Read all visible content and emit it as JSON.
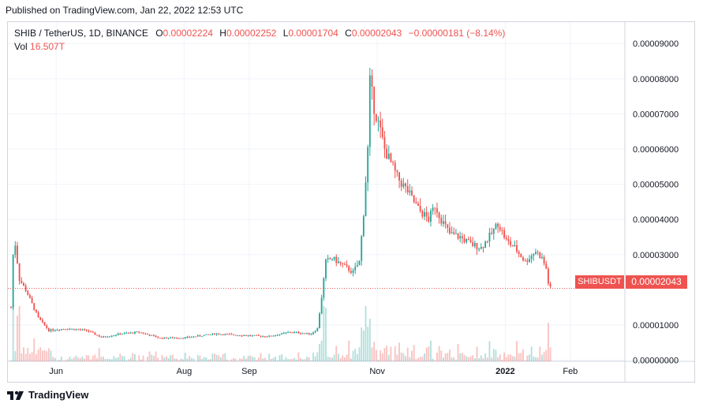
{
  "header": {
    "published": "Published on TradingView.com, Jan 22, 2022 12:53 UTC"
  },
  "legend": {
    "symbol": "SHIB / TetherUS, 1D, BINANCE",
    "o_label": "O",
    "o_value": "0.00002224",
    "h_label": "H",
    "h_value": "0.00002252",
    "l_label": "L",
    "l_value": "0.00001704",
    "c_label": "C",
    "c_value": "0.00002043",
    "change": "−0.00000181 (−8.14%)",
    "vol_label": "Vol",
    "vol_value": "16.507T"
  },
  "price_tag": {
    "symbol": "SHIBUSDT",
    "value": "0.00002043"
  },
  "footer": {
    "brand": "TradingView"
  },
  "colors": {
    "up": "#26a69a",
    "down": "#ef5350",
    "grid": "#f0f3fa",
    "axis_text": "#131722"
  },
  "chart_data": {
    "type": "candlestick",
    "symbol": "SHIBUSDT",
    "y_ticks": [
      {
        "value": 9e-05,
        "label": "0.00009000"
      },
      {
        "value": 8e-05,
        "label": "0.00008000"
      },
      {
        "value": 7e-05,
        "label": "0.00007000"
      },
      {
        "value": 6e-05,
        "label": "0.00006000"
      },
      {
        "value": 5e-05,
        "label": "0.00005000"
      },
      {
        "value": 4e-05,
        "label": "0.00004000"
      },
      {
        "value": 3e-05,
        "label": "0.00003000"
      },
      {
        "value": 1e-05,
        "label": "0.00001000"
      },
      {
        "value": 0.0,
        "label": "0.00000000"
      }
    ],
    "x_ticks": [
      {
        "date": "2021-06-01",
        "label": "Jun"
      },
      {
        "date": "2021-08-01",
        "label": "Aug"
      },
      {
        "date": "2021-09-01",
        "label": "Sep"
      },
      {
        "date": "2021-11-01",
        "label": "Nov"
      },
      {
        "date": "2022-01-01",
        "label": "2022"
      },
      {
        "date": "2022-02-01",
        "label": "Feb"
      }
    ],
    "x_range": [
      "2021-05-09",
      "2022-02-27"
    ],
    "y_range": [
      -3e-07,
      9.61e-05
    ],
    "last_price": 2.043e-05,
    "close_path": [
      [
        "2021-05-10",
        1.5e-05
      ],
      [
        "2021-05-11",
        3e-05
      ],
      [
        "2021-05-12",
        3.3e-05
      ],
      [
        "2021-05-14",
        2.3e-05
      ],
      [
        "2021-05-17",
        2e-05
      ],
      [
        "2021-05-20",
        1.6e-05
      ],
      [
        "2021-05-23",
        1.2e-05
      ],
      [
        "2021-05-28",
        8.5e-06
      ],
      [
        "2021-06-05",
        9e-06
      ],
      [
        "2021-06-15",
        8.5e-06
      ],
      [
        "2021-06-22",
        6.5e-06
      ],
      [
        "2021-07-01",
        7.5e-06
      ],
      [
        "2021-07-10",
        8e-06
      ],
      [
        "2021-07-20",
        6.3e-06
      ],
      [
        "2021-08-01",
        6.4e-06
      ],
      [
        "2021-08-15",
        7.5e-06
      ],
      [
        "2021-09-01",
        7e-06
      ],
      [
        "2021-09-10",
        6.8e-06
      ],
      [
        "2021-09-20",
        8e-06
      ],
      [
        "2021-09-30",
        7.5e-06
      ],
      [
        "2021-10-03",
        9e-06
      ],
      [
        "2021-10-05",
        1.8e-05
      ],
      [
        "2021-10-07",
        2.8e-05
      ],
      [
        "2021-10-10",
        2.9e-05
      ],
      [
        "2021-10-15",
        2.7e-05
      ],
      [
        "2021-10-20",
        2.5e-05
      ],
      [
        "2021-10-23",
        2.8e-05
      ],
      [
        "2021-10-25",
        4.2e-05
      ],
      [
        "2021-10-27",
        6e-05
      ],
      [
        "2021-10-28",
        7.9e-05
      ],
      [
        "2021-10-30",
        7.2e-05
      ],
      [
        "2021-11-02",
        6.5e-05
      ],
      [
        "2021-11-04",
        6e-05
      ],
      [
        "2021-11-07",
        5.6e-05
      ],
      [
        "2021-11-10",
        5.2e-05
      ],
      [
        "2021-11-15",
        4.8e-05
      ],
      [
        "2021-11-20",
        4.3e-05
      ],
      [
        "2021-11-25",
        4e-05
      ],
      [
        "2021-11-28",
        4.4e-05
      ],
      [
        "2021-12-01",
        4e-05
      ],
      [
        "2021-12-05",
        3.6e-05
      ],
      [
        "2021-12-10",
        3.5e-05
      ],
      [
        "2021-12-15",
        3.3e-05
      ],
      [
        "2021-12-20",
        3.2e-05
      ],
      [
        "2021-12-25",
        3.6e-05
      ],
      [
        "2021-12-28",
        3.9e-05
      ],
      [
        "2022-01-01",
        3.4e-05
      ],
      [
        "2022-01-05",
        3.2e-05
      ],
      [
        "2022-01-10",
        2.8e-05
      ],
      [
        "2022-01-15",
        3.1e-05
      ],
      [
        "2022-01-18",
        2.9e-05
      ],
      [
        "2022-01-20",
        2.6e-05
      ],
      [
        "2022-01-21",
        2.2e-05
      ],
      [
        "2022-01-22",
        2.04e-05
      ]
    ],
    "volume_scale": "relative"
  }
}
